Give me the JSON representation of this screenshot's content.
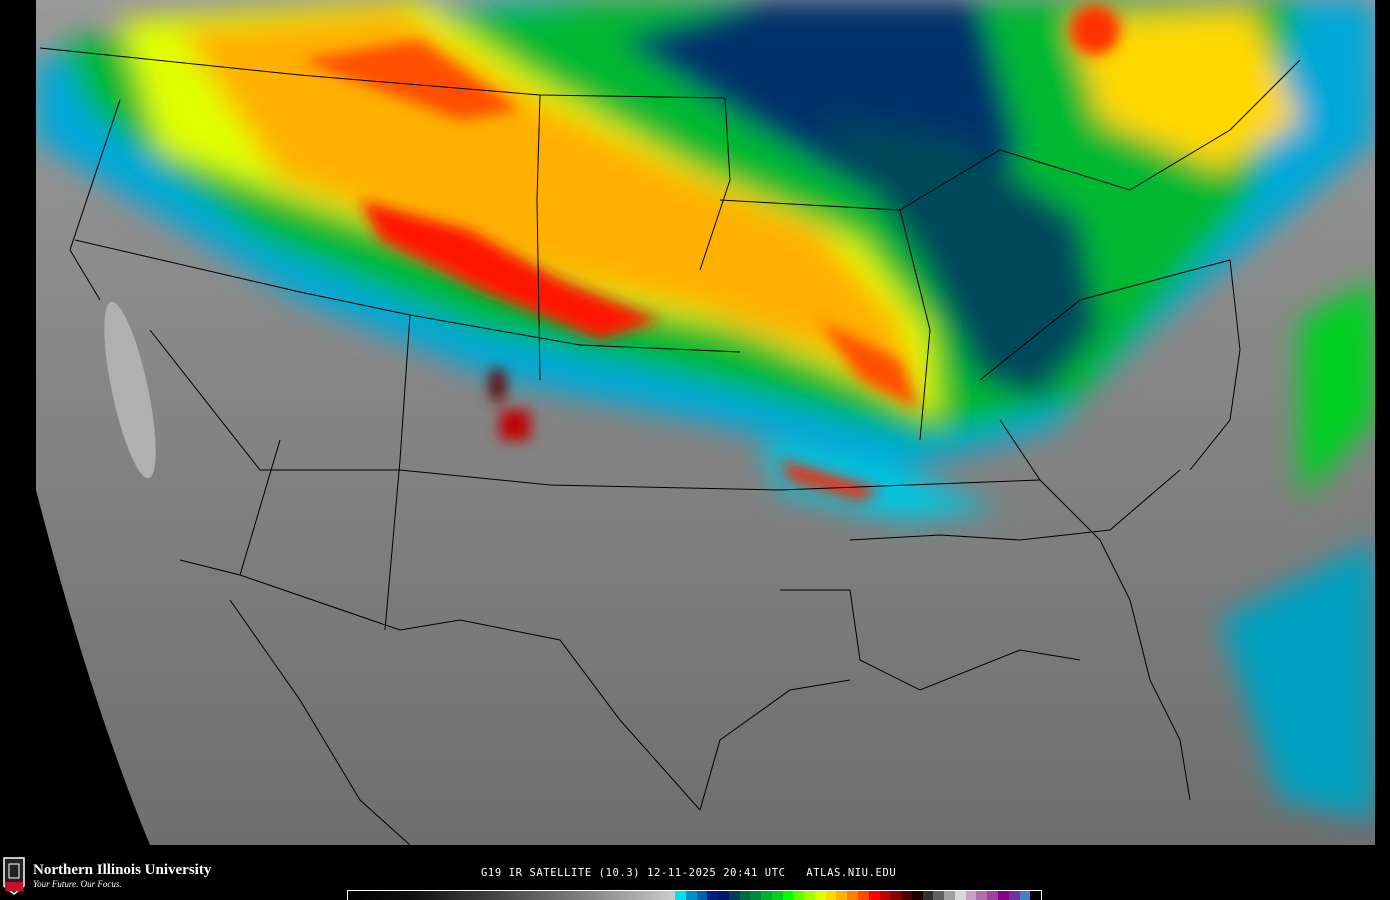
{
  "footer": {
    "logo": {
      "name": "Northern Illinois University",
      "tagline": "Your Future. Our Focus.",
      "badge": "NIU"
    },
    "caption": "G19 IR SATELLITE (10.3) 12-11-2025 20:41 UTC   ATLAS.NIU.EDU"
  },
  "map": {
    "region": "Continental United States",
    "product": "IR satellite brightness temperature enhancement",
    "land_color": "#8a8a8a",
    "boundary_color": "#000000"
  },
  "colorbar": {
    "gray_range": [
      "#000000",
      "#cccccc"
    ],
    "colors": [
      "#00e0f0",
      "#0090c8",
      "#0060b0",
      "#002080",
      "#001868",
      "#003a60",
      "#006a40",
      "#008a3a",
      "#00b030",
      "#00d020",
      "#00ff00",
      "#60ff00",
      "#a0ff00",
      "#e0ff00",
      "#ffd800",
      "#ffb000",
      "#ff8000",
      "#ff4800",
      "#ff0000",
      "#c00000",
      "#880000",
      "#500000",
      "#200000",
      "#303030",
      "#606060",
      "#a0a0a0",
      "#d8d8d8",
      "#c8a0c8",
      "#b070b0",
      "#a040a0",
      "#880088",
      "#7030a0",
      "#4080c8",
      "#000000"
    ]
  }
}
